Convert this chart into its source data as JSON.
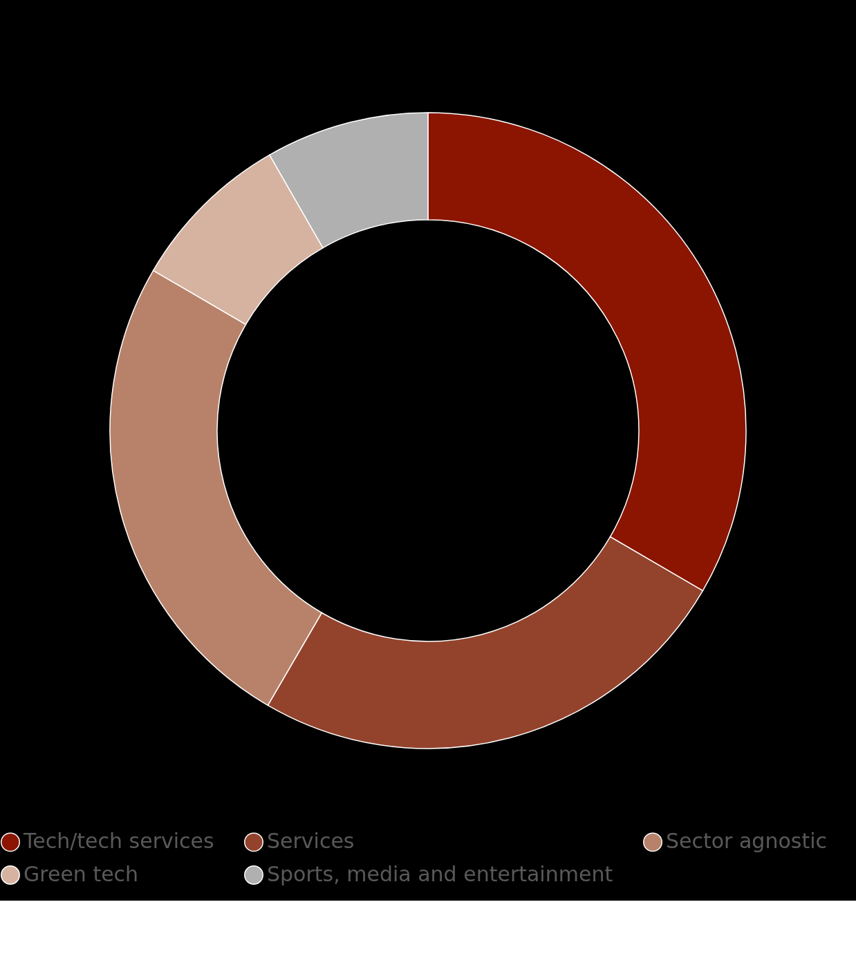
{
  "chart_data": {
    "type": "donut",
    "categories": [
      "Tech/tech services",
      "Services",
      "Sector agnostic",
      "Green tech",
      "Sports, media and entertainment"
    ],
    "values": [
      33.4,
      25,
      25,
      8.3,
      8.3
    ],
    "colors": [
      "#8b1500",
      "#93432c",
      "#b8826a",
      "#d6b3a0",
      "#b0b0b0"
    ],
    "legend": "bottom"
  }
}
